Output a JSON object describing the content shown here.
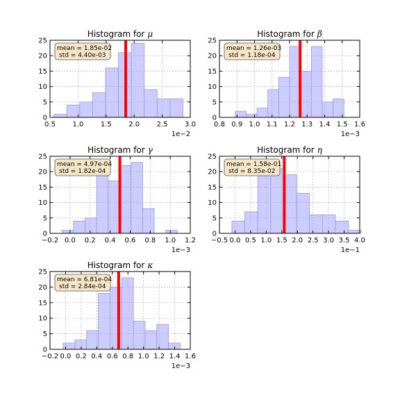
{
  "figure": {
    "background": "#ffffff"
  },
  "style": {
    "bar_fill": "#ccccff",
    "bar_stroke": "#9999dd",
    "mean_line_color": "#ff0000",
    "grid_color": "#b0b0b0",
    "stats_box_fill": "#f5e6c8",
    "stats_box_stroke": "#555555"
  },
  "chart_data": [
    {
      "type": "bar",
      "title": "Histogram for μ",
      "title_prefix": "Histogram for",
      "symbol": "μ",
      "xlim": [
        0.5,
        3.0
      ],
      "ylim": [
        0,
        25
      ],
      "xticks": [
        0.5,
        1.0,
        1.5,
        2.0,
        2.5,
        3.0
      ],
      "xtick_labels": [
        "0.5",
        "1.0",
        "1.5",
        "2.0",
        "2.5",
        "3.0"
      ],
      "yticks": [
        0,
        5,
        10,
        15,
        20,
        25
      ],
      "ytick_labels": [
        "0",
        "5",
        "10",
        "15",
        "20",
        "25"
      ],
      "offset_label": "1e−2",
      "bin_edges": [
        0.57,
        0.8,
        1.03,
        1.26,
        1.49,
        1.72,
        1.95,
        2.18,
        2.41,
        2.64,
        2.87
      ],
      "counts": [
        1,
        4,
        5,
        8,
        16,
        21,
        24,
        9,
        6,
        6
      ],
      "mean": 1.85,
      "stats": [
        "mean = 1.85e-02",
        "std = 4.40e-03"
      ],
      "grid": true
    },
    {
      "type": "bar",
      "title": "Histogram for β",
      "title_prefix": "Histogram for",
      "symbol": "β",
      "xlim": [
        0.8,
        1.6
      ],
      "ylim": [
        0,
        25
      ],
      "xticks": [
        0.8,
        0.9,
        1.0,
        1.1,
        1.2,
        1.3,
        1.4,
        1.5,
        1.6
      ],
      "xtick_labels": [
        "0.8",
        "0.9",
        "1.0",
        "1.1",
        "1.2",
        "1.3",
        "1.4",
        "1.5",
        "1.6"
      ],
      "yticks": [
        0,
        5,
        10,
        15,
        20,
        25
      ],
      "ytick_labels": [
        "0",
        "5",
        "10",
        "15",
        "20",
        "25"
      ],
      "offset_label": "1e−3",
      "bin_edges": [
        0.89,
        0.952,
        1.014,
        1.076,
        1.138,
        1.2,
        1.262,
        1.324,
        1.386,
        1.448,
        1.51
      ],
      "counts": [
        2,
        1,
        3,
        9,
        13,
        23,
        15,
        23,
        5,
        6
      ],
      "mean": 1.26,
      "stats": [
        "mean = 1.26e-03",
        "std = 1.18e-04"
      ],
      "grid": true
    },
    {
      "type": "bar",
      "title": "Histogram for γ",
      "title_prefix": "Histogram for",
      "symbol": "γ",
      "xlim": [
        -0.2,
        1.2
      ],
      "ylim": [
        0,
        25
      ],
      "xticks": [
        -0.2,
        0.0,
        0.2,
        0.4,
        0.6,
        0.8,
        1.0,
        1.2
      ],
      "xtick_labels": [
        "−0.2",
        "0.0",
        "0.2",
        "0.4",
        "0.6",
        "0.8",
        "1.0",
        "1.2"
      ],
      "yticks": [
        0,
        5,
        10,
        15,
        20,
        25
      ],
      "ytick_labels": [
        "0",
        "5",
        "10",
        "15",
        "20",
        "25"
      ],
      "offset_label": "1e−3",
      "bin_edges": [
        -0.08,
        0.035,
        0.15,
        0.265,
        0.38,
        0.495,
        0.61,
        0.725,
        0.84,
        0.955,
        1.07
      ],
      "counts": [
        1,
        4,
        5,
        20,
        17,
        22,
        23,
        8,
        0,
        1
      ],
      "mean": 0.497,
      "stats": [
        "mean = 4.97e-04",
        "std = 1.82e-04"
      ],
      "grid": true
    },
    {
      "type": "bar",
      "title": "Histogram for η",
      "title_prefix": "Histogram for",
      "symbol": "η",
      "xlim": [
        -0.5,
        4.0
      ],
      "ylim": [
        0,
        25
      ],
      "xticks": [
        -0.5,
        0.0,
        0.5,
        1.0,
        1.5,
        2.0,
        2.5,
        3.0,
        3.5,
        4.0
      ],
      "xtick_labels": [
        "−0.5",
        "0.0",
        "0.5",
        "1.0",
        "1.5",
        "2.0",
        "2.5",
        "3.0",
        "3.5",
        "4.0"
      ],
      "yticks": [
        0,
        5,
        10,
        15,
        20,
        25
      ],
      "ytick_labels": [
        "0",
        "5",
        "10",
        "15",
        "20",
        "25"
      ],
      "offset_label": "1e−1",
      "bin_edges": [
        -0.1,
        0.315,
        0.73,
        1.145,
        1.56,
        1.975,
        2.39,
        2.805,
        3.22,
        3.635,
        4.05
      ],
      "counts": [
        4,
        7,
        21,
        21,
        19,
        13,
        6,
        6,
        4,
        1
      ],
      "mean": 1.58,
      "stats": [
        "mean = 1.58e-01",
        "std = 8.35e-02"
      ],
      "grid": true
    },
    {
      "type": "bar",
      "title": "Histogram for κ",
      "title_prefix": "Histogram for",
      "symbol": "κ",
      "xlim": [
        -0.2,
        1.6
      ],
      "ylim": [
        0,
        25
      ],
      "xticks": [
        -0.2,
        0.0,
        0.2,
        0.4,
        0.6,
        0.8,
        1.0,
        1.2,
        1.4,
        1.6
      ],
      "xtick_labels": [
        "−0.2",
        "0.0",
        "0.2",
        "0.4",
        "0.6",
        "0.8",
        "1.0",
        "1.2",
        "1.4",
        "1.6"
      ],
      "yticks": [
        0,
        5,
        10,
        15,
        20,
        25
      ],
      "ytick_labels": [
        "0",
        "5",
        "10",
        "15",
        "20",
        "25"
      ],
      "offset_label": "1e−3",
      "bin_edges": [
        -0.03,
        0.12,
        0.27,
        0.42,
        0.57,
        0.72,
        0.87,
        1.02,
        1.17,
        1.32,
        1.47
      ],
      "counts": [
        2,
        3,
        6,
        18,
        20,
        23,
        9,
        6,
        8,
        2
      ],
      "mean": 0.681,
      "stats": [
        "mean = 6.81e-04",
        "std = 2.84e-04"
      ],
      "grid": true
    }
  ]
}
